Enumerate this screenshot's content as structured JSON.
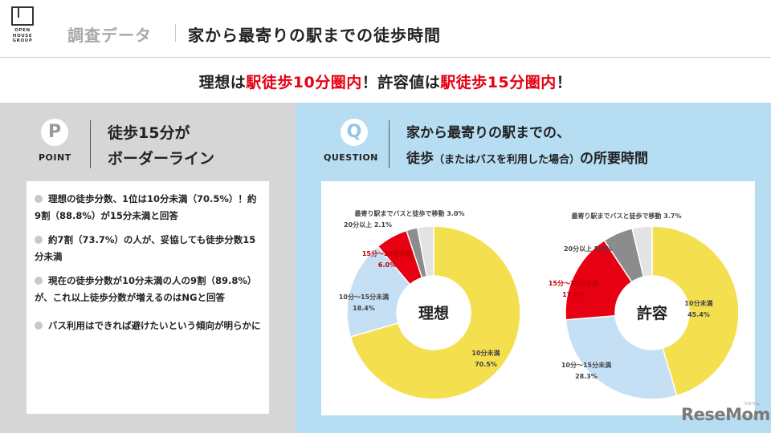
{
  "header": {
    "logo_text": "OPEN\nHOUSE\nGROUP",
    "breadcrumb": "調査データ",
    "title": "家から最寄りの駅までの徒歩時間"
  },
  "headline": {
    "p1": "理想は",
    "p2": "駅徒歩10分圏内",
    "p3": "！許容値は",
    "p4": "駅徒歩15分圏内",
    "p5": "！"
  },
  "point": {
    "badge": "P",
    "label": "POINT",
    "line1": "徒歩15分が",
    "line2": "ボーダーライン"
  },
  "notes": [
    "理想の徒歩分数、1位は10分未満（70.5%）！約9割（88.8%）が15分未満と回答",
    "約7割（73.7%）の人が、妥協しても徒歩分数15分未満",
    "現在の徒歩分数が10分未満の人の9割（89.8%）が、これ以上徒歩分数が増えるのはNGと回答",
    "バス利用はできれば避けたいという傾向が明らかに"
  ],
  "question": {
    "badge": "Q",
    "label": "QUESTION",
    "line1": "家から最寄りの駅までの、",
    "line2_main": "徒歩",
    "line2_paren": "（またはバスを利用した場合）",
    "line2_end": "の所要時間"
  },
  "colors": {
    "yellow": "#f4df4f",
    "light_blue": "#c5dff4",
    "red": "#e60012",
    "gray": "#8c8c8c",
    "light_gray": "#e3e3e3",
    "accent_red": "#e60012",
    "panel_gray": "#d6d6d6",
    "panel_blue": "#b7ddf3"
  },
  "chart_data": [
    {
      "type": "pie",
      "center_label": "理想",
      "categories": [
        "10分未満",
        "10分～15分未満",
        "15分～20分未満",
        "20分以上",
        "最寄り駅までバスと徒歩で移動"
      ],
      "values": [
        70.5,
        18.4,
        6.0,
        2.1,
        3.0
      ],
      "labels": [
        "70.5%",
        "18.4%",
        "6.0%",
        "2.1%",
        "3.0%"
      ]
    },
    {
      "type": "pie",
      "center_label": "許容",
      "categories": [
        "10分未満",
        "10分～15分未満",
        "15分～20分未満",
        "20分以上",
        "最寄り駅までバスと徒歩で移動"
      ],
      "values": [
        45.4,
        28.3,
        17.0,
        5.6,
        3.7
      ],
      "labels": [
        "45.4%",
        "28.3%",
        "17.0%",
        "5.6%",
        "3.7%"
      ]
    }
  ],
  "watermark": "ReseMom",
  "watermark_small": "リセマム"
}
